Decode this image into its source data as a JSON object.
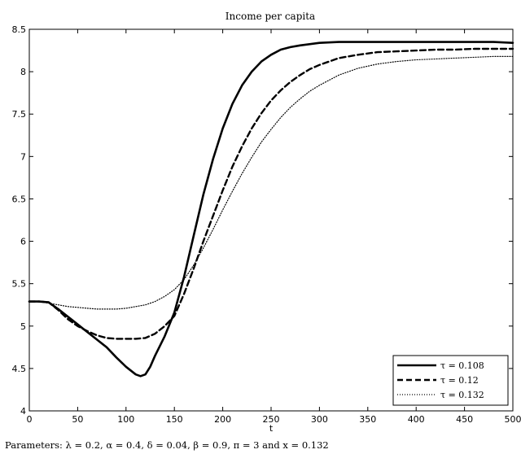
{
  "chart_data": {
    "type": "line",
    "title": "Income per capita",
    "xlabel": "t",
    "ylabel": "",
    "xlim": [
      0,
      500
    ],
    "ylim": [
      4,
      8.5
    ],
    "xticks": [
      "0",
      "50",
      "100",
      "150",
      "200",
      "250",
      "300",
      "350",
      "400",
      "450",
      "500"
    ],
    "yticks": [
      "4",
      "4.5",
      "5",
      "5.5",
      "6",
      "6.5",
      "7",
      "7.5",
      "8",
      "8.5"
    ],
    "legend_position": "bottom-right",
    "grid": false,
    "series": [
      {
        "name": "τ = 0.108",
        "style": "solid",
        "x": [
          0,
          10,
          20,
          25,
          30,
          40,
          50,
          60,
          70,
          80,
          90,
          100,
          110,
          115,
          120,
          125,
          130,
          140,
          150,
          160,
          170,
          180,
          190,
          200,
          210,
          220,
          230,
          240,
          250,
          260,
          270,
          280,
          300,
          320,
          340,
          360,
          380,
          400,
          420,
          440,
          460,
          480,
          500
        ],
        "y": [
          5.29,
          5.29,
          5.28,
          5.24,
          5.2,
          5.11,
          5.02,
          4.93,
          4.84,
          4.75,
          4.63,
          4.52,
          4.43,
          4.41,
          4.43,
          4.52,
          4.65,
          4.88,
          5.16,
          5.58,
          6.07,
          6.55,
          6.97,
          7.33,
          7.62,
          7.84,
          8.0,
          8.12,
          8.2,
          8.26,
          8.29,
          8.31,
          8.34,
          8.35,
          8.35,
          8.35,
          8.35,
          8.35,
          8.35,
          8.35,
          8.35,
          8.35,
          8.34
        ]
      },
      {
        "name": "τ = 0.12",
        "style": "dashed",
        "x": [
          0,
          10,
          20,
          30,
          40,
          50,
          60,
          70,
          80,
          90,
          100,
          110,
          120,
          130,
          140,
          150,
          160,
          170,
          180,
          190,
          200,
          210,
          220,
          230,
          240,
          250,
          260,
          270,
          280,
          290,
          300,
          320,
          340,
          360,
          380,
          400,
          420,
          440,
          460,
          480,
          500
        ],
        "y": [
          5.29,
          5.29,
          5.28,
          5.19,
          5.08,
          5.0,
          4.94,
          4.89,
          4.86,
          4.85,
          4.85,
          4.85,
          4.86,
          4.91,
          5.0,
          5.12,
          5.38,
          5.68,
          6.0,
          6.3,
          6.6,
          6.88,
          7.12,
          7.33,
          7.51,
          7.66,
          7.78,
          7.88,
          7.96,
          8.03,
          8.08,
          8.16,
          8.2,
          8.23,
          8.24,
          8.25,
          8.26,
          8.26,
          8.27,
          8.27,
          8.27
        ]
      },
      {
        "name": "τ = 0.132",
        "style": "dotted",
        "x": [
          0,
          10,
          20,
          30,
          40,
          50,
          60,
          70,
          80,
          90,
          100,
          110,
          120,
          130,
          140,
          150,
          160,
          170,
          180,
          190,
          200,
          210,
          220,
          230,
          240,
          250,
          260,
          270,
          280,
          290,
          300,
          320,
          340,
          360,
          380,
          400,
          420,
          440,
          460,
          480,
          500
        ],
        "y": [
          5.29,
          5.29,
          5.27,
          5.25,
          5.23,
          5.22,
          5.21,
          5.2,
          5.2,
          5.2,
          5.21,
          5.23,
          5.25,
          5.29,
          5.35,
          5.43,
          5.55,
          5.72,
          5.92,
          6.14,
          6.37,
          6.59,
          6.8,
          6.99,
          7.17,
          7.32,
          7.46,
          7.58,
          7.68,
          7.77,
          7.84,
          7.96,
          8.04,
          8.09,
          8.12,
          8.14,
          8.15,
          8.16,
          8.17,
          8.18,
          8.18
        ]
      }
    ],
    "caption": "Parameters: λ = 0.2, α = 0.4, δ = 0.04, β = 0.9, π = 3 and x = 0.132"
  }
}
